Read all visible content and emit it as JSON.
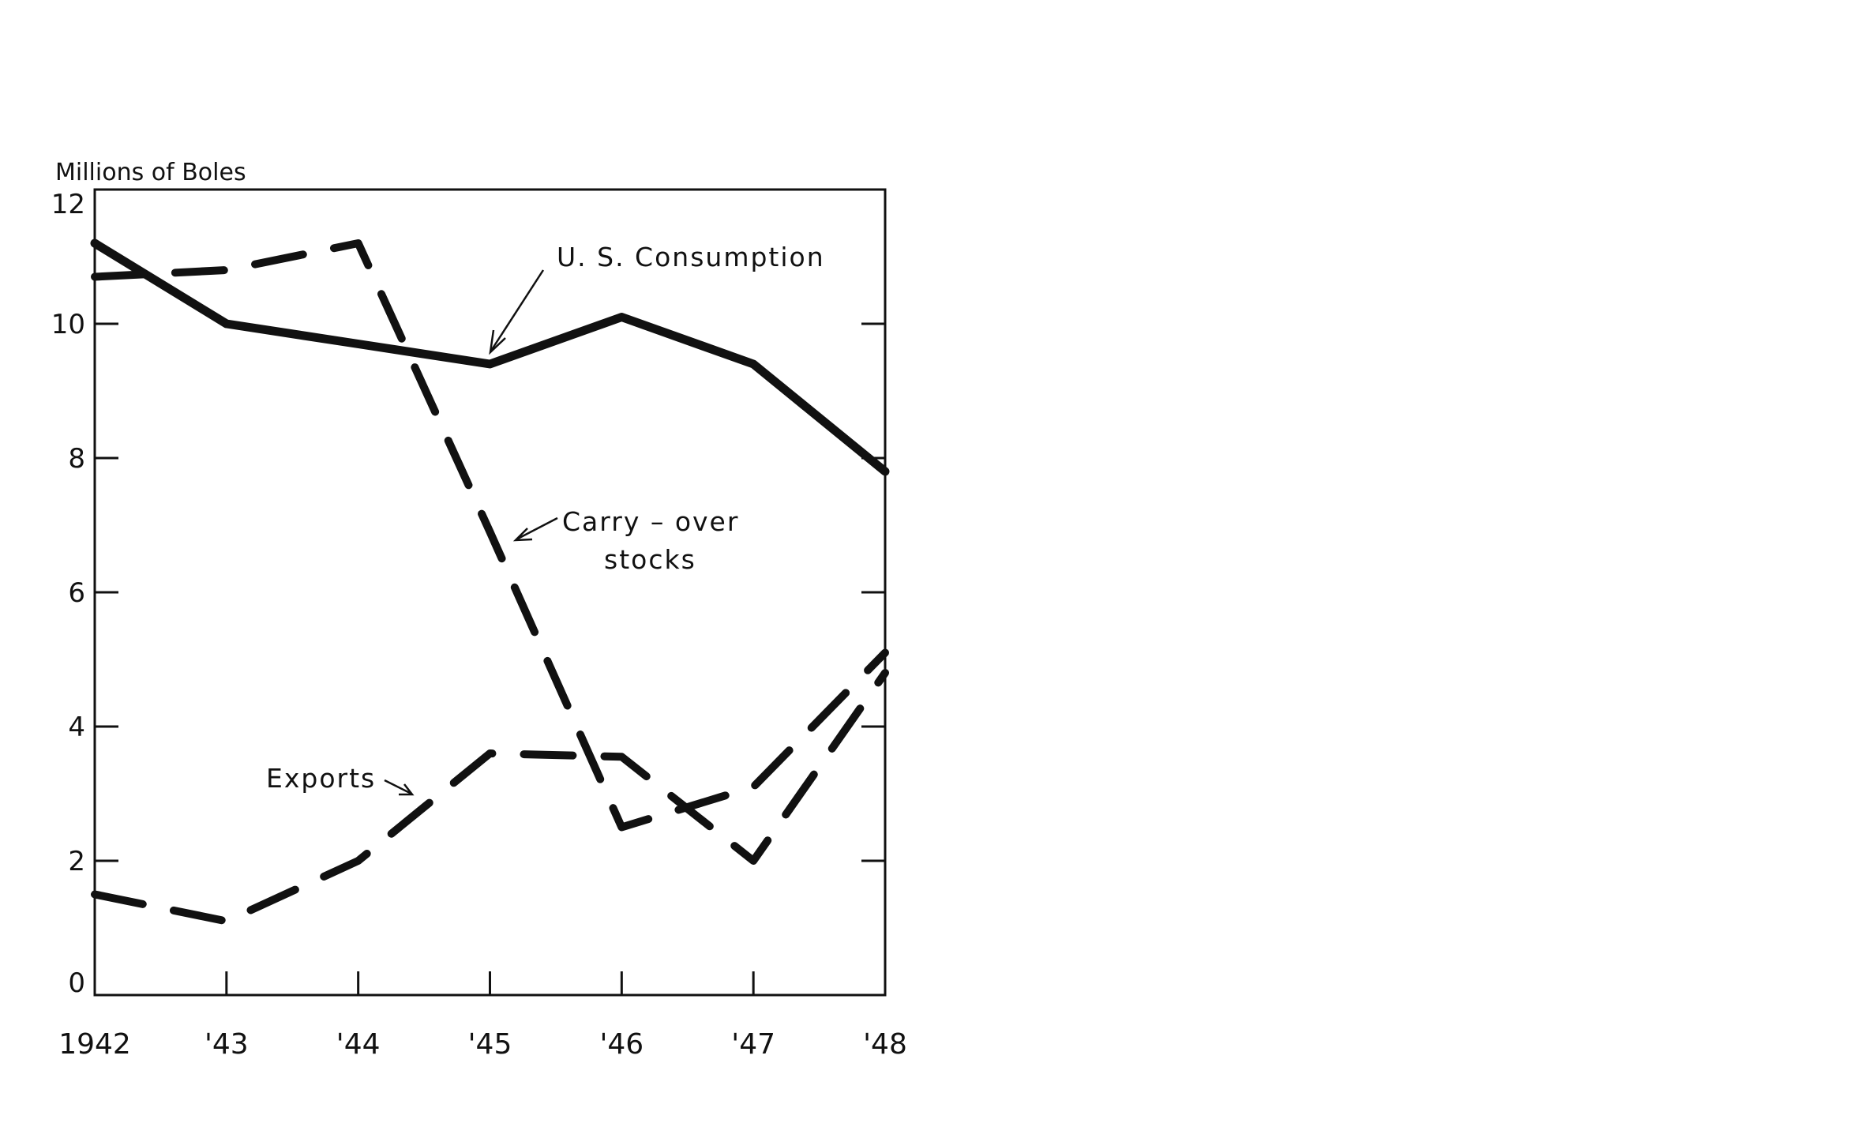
{
  "chart_data": {
    "type": "line",
    "title": "",
    "ylabel": "Millions of Boles",
    "xlabel": "",
    "categories": [
      "1942",
      "'43",
      "'44",
      "'45",
      "'46",
      "'47",
      "'48"
    ],
    "x": [
      1942,
      1943,
      1944,
      1945,
      1946,
      1947,
      1948
    ],
    "ylim": [
      0,
      12
    ],
    "yticks": [
      0,
      2,
      4,
      6,
      8,
      10,
      12
    ],
    "grid": false,
    "legend": "inline annotations with arrows",
    "series": [
      {
        "name": "U. S. Consumption",
        "style": "solid",
        "values": [
          11.2,
          10.0,
          9.7,
          9.4,
          10.1,
          9.4,
          7.8
        ]
      },
      {
        "name": "Carry - over stocks",
        "style": "dashed",
        "values": [
          10.7,
          10.8,
          11.2,
          6.9,
          2.5,
          3.1,
          5.1
        ]
      },
      {
        "name": "Exports",
        "style": "dashed",
        "values": [
          1.5,
          1.1,
          2.0,
          3.6,
          3.55,
          2.0,
          4.8
        ]
      }
    ],
    "annotations": [
      {
        "text": "U. S. Consumption",
        "points_to": "U. S. Consumption at '45"
      },
      {
        "text_lines": [
          "Carry - over",
          "stocks"
        ],
        "points_to": "Carry - over stocks between '45 and '46"
      },
      {
        "text": "Exports",
        "points_to": "Exports between '44 and '45"
      }
    ]
  },
  "labels": {
    "ylabel": "Millions of Boles",
    "consumption": "U. S. Consumption",
    "carry_line1": "Carry – over",
    "carry_line2": "stocks",
    "exports": "Exports"
  },
  "colors": {
    "ink": "#111111",
    "background": "#ffffff"
  }
}
